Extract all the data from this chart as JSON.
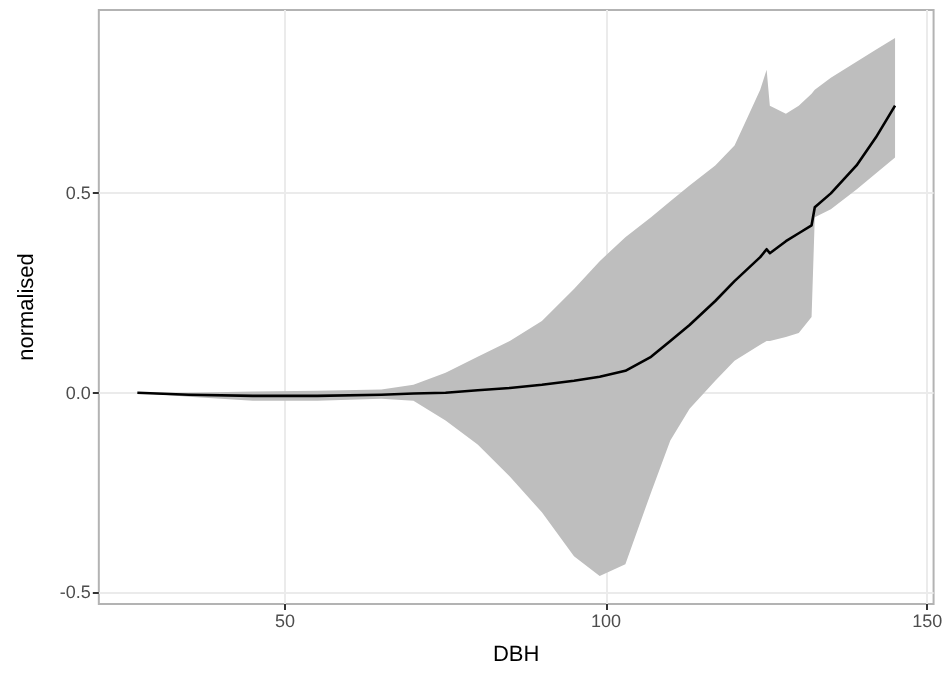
{
  "chart_data": {
    "type": "line",
    "xlabel": "DBH",
    "ylabel": "normalised",
    "xlim": [
      21,
      151
    ],
    "xticks": [
      50,
      100,
      150
    ],
    "ylim": [
      -0.53,
      0.96
    ],
    "yticks": [
      -0.5,
      {
        "value": 0,
        "label": "0.0"
      },
      0.5
    ],
    "grid": true,
    "marker": "none",
    "line_style": "solid",
    "series": [
      {
        "color": "#000000",
        "x": [
          27,
          35,
          45,
          55,
          65,
          70,
          75,
          80,
          85,
          90,
          95,
          99,
          103,
          107,
          110,
          113,
          117,
          120,
          122,
          124,
          125,
          125.5,
          128,
          130,
          132,
          132.5,
          135,
          139,
          142,
          145
        ],
        "values": [
          0,
          -0.005,
          -0.008,
          -0.008,
          -0.005,
          -0.002,
          0,
          0.006,
          0.012,
          0.02,
          0.03,
          0.04,
          0.055,
          0.09,
          0.13,
          0.17,
          0.23,
          0.28,
          0.31,
          0.34,
          0.36,
          0.35,
          0.38,
          0.4,
          0.42,
          0.465,
          0.5,
          0.57,
          0.64,
          0.72
        ],
        "lower": [
          0,
          -0.01,
          -0.02,
          -0.02,
          -0.015,
          -0.02,
          -0.07,
          -0.13,
          -0.21,
          -0.3,
          -0.41,
          -0.46,
          -0.43,
          -0.25,
          -0.12,
          -0.04,
          0.03,
          0.08,
          0.1,
          0.12,
          0.13,
          0.13,
          0.14,
          0.15,
          0.19,
          0.44,
          0.46,
          0.51,
          0.55,
          0.59
        ],
        "upper": [
          0,
          0,
          0.003,
          0.005,
          0.008,
          0.02,
          0.05,
          0.09,
          0.13,
          0.18,
          0.26,
          0.33,
          0.39,
          0.44,
          0.48,
          0.52,
          0.57,
          0.62,
          0.69,
          0.76,
          0.81,
          0.72,
          0.7,
          0.72,
          0.75,
          0.76,
          0.79,
          0.83,
          0.86,
          0.89
        ]
      }
    ]
  }
}
